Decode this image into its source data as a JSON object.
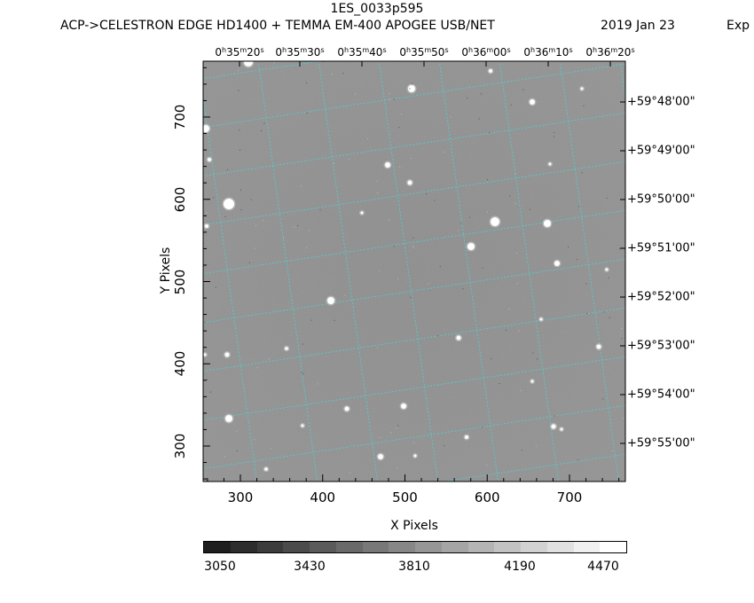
{
  "header": {
    "title": "1ES_0033p595",
    "subtitle": "ACP->CELESTRON EDGE HD1400 + TEMMA EM-400 APOGEE USB/NET",
    "date": "2019 Jan 23",
    "exp": "Exp"
  },
  "ra_ticks": [
    {
      "h": "0",
      "hs": "h",
      "m": "35",
      "ms": "m",
      "s": "20",
      "ss": "s"
    },
    {
      "h": "0",
      "hs": "h",
      "m": "35",
      "ms": "m",
      "s": "30",
      "ss": "s"
    },
    {
      "h": "0",
      "hs": "h",
      "m": "35",
      "ms": "m",
      "s": "40",
      "ss": "s"
    },
    {
      "h": "0",
      "hs": "h",
      "m": "35",
      "ms": "m",
      "s": "50",
      "ss": "s"
    },
    {
      "h": "0",
      "hs": "h",
      "m": "36",
      "ms": "m",
      "s": "00",
      "ss": "s"
    },
    {
      "h": "0",
      "hs": "h",
      "m": "36",
      "ms": "m",
      "s": "10",
      "ss": "s"
    },
    {
      "h": "0",
      "hs": "h",
      "m": "36",
      "ms": "m",
      "s": "20",
      "ss": "s"
    }
  ],
  "dec_ticks": [
    "+59°48'00\"",
    "+59°49'00\"",
    "+59°50'00\"",
    "+59°51'00\"",
    "+59°52'00\"",
    "+59°53'00\"",
    "+59°54'00\"",
    "+59°55'00\""
  ],
  "axes": {
    "xlabel": "X Pixels",
    "ylabel": "Y Pixels",
    "x_ticks": [
      "300",
      "400",
      "500",
      "600",
      "700"
    ],
    "y_ticks": [
      "700",
      "600",
      "500",
      "400",
      "300"
    ]
  },
  "colorbar": {
    "labels": [
      "3050",
      "3430",
      "3810",
      "4190",
      "4470"
    ],
    "min": 3050,
    "max": 4470
  },
  "colors": {
    "grid": "#4dd2d2",
    "background": "#8f8f8f"
  }
}
